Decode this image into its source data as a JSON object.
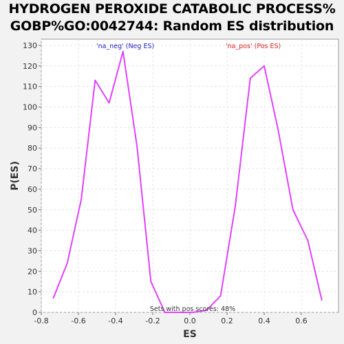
{
  "chart_data": {
    "type": "line",
    "title_line1": "HYDROGEN PEROXIDE CATABOLIC PROCESS%",
    "title_line2": "GOBP%GO:0042744: Random ES distribution",
    "xlabel": "ES",
    "ylabel": "P(ES)",
    "xlim": [
      -0.8,
      0.8
    ],
    "ylim": [
      0,
      133
    ],
    "xticks": [
      "-0.8",
      "-0.6",
      "-0.4",
      "-0.2",
      "0.0",
      "0.2",
      "0.4",
      "0.6"
    ],
    "yticks": [
      "0",
      "10",
      "20",
      "30",
      "40",
      "50",
      "60",
      "70",
      "80",
      "90",
      "100",
      "110",
      "120",
      "130"
    ],
    "grid": true,
    "line_color": "#e040fb",
    "series": [
      {
        "x": [
          -0.735,
          -0.66,
          -0.585,
          -0.51,
          -0.435,
          -0.36,
          -0.285,
          -0.21,
          -0.135,
          -0.06,
          0.015,
          0.09,
          0.165,
          0.245,
          0.325,
          0.4,
          0.475,
          0.555,
          0.635,
          0.71
        ],
        "y": [
          7,
          24,
          55,
          113,
          102,
          127,
          81,
          15,
          0,
          0,
          0,
          1,
          8,
          52,
          114,
          120,
          89,
          50,
          35,
          6
        ]
      }
    ],
    "legend": [
      {
        "label": "'na_neg' (Neg ES)",
        "color": "#2222cc",
        "position": "top-left"
      },
      {
        "label": "'na_pos' (Pos ES)",
        "color": "#dd2222",
        "position": "top-right"
      }
    ],
    "annotation": "Sets with pos scores: 48%"
  }
}
